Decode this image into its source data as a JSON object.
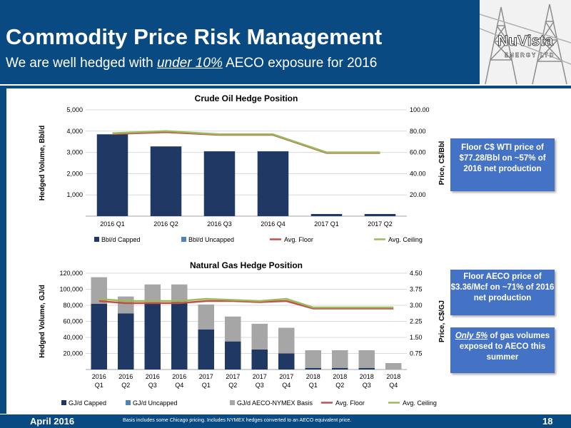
{
  "header": {
    "title": "Commodity Price Risk Management",
    "subtitle_pre": "We are well hedged with ",
    "subtitle_em": "under 10%",
    "subtitle_post": " AECO exposure for 2016",
    "logo_text": "NuVista",
    "logo_sub": "ENERGY LTD"
  },
  "callouts": {
    "oil": "Floor C$ WTI price of $77.28/Bbl on ~57% of 2016 net production",
    "gas": "Floor AECO price of $3.36/Mcf on ~71% of 2016 net production",
    "aeco_highlight": "Only 5%",
    "aeco_rest": " of gas volumes exposed to AECO this summer"
  },
  "footer": {
    "date": "April 2016",
    "note": "Basis includes some Chicago pricing.   Includes NYMEX hedges converted to an AECO equivalent price.",
    "page": "18"
  },
  "colors": {
    "brand": "#0a4a82",
    "capped": "#1f3864",
    "uncapped": "#4f81bd",
    "aeco_nymex": "#a6a6a6",
    "floor": "#c0504d",
    "ceiling": "#9bbb59",
    "callout": "#4472c4"
  },
  "chart_data": [
    {
      "type": "bar",
      "title": "Crude Oil Hedge Position",
      "ylabel": "Hedged Volume, Bbl/d",
      "y2label": "Price, C$/Bbl",
      "categories": [
        "2016 Q1",
        "2016 Q2",
        "2016 Q3",
        "2016 Q4",
        "2017 Q1",
        "2017 Q2"
      ],
      "ylim": [
        0,
        5000
      ],
      "yticks": [
        "",
        "1,000",
        "2,000",
        "3,000",
        "4,000",
        "5,000"
      ],
      "y2lim": [
        0,
        100
      ],
      "y2ticks": [
        "",
        "20.00",
        "40.00",
        "60.00",
        "80.00",
        "100.00"
      ],
      "stacked": true,
      "series": [
        {
          "name": "Bbl/d Capped",
          "values": [
            3850,
            3280,
            3050,
            3050,
            100,
            100
          ]
        },
        {
          "name": "Bbl/d Uncapped",
          "values": [
            0,
            0,
            0,
            0,
            0,
            0
          ]
        }
      ],
      "lines": [
        {
          "name": "Avg. Floor",
          "axis": "y2",
          "values": [
            77.3,
            79.0,
            76.5,
            76.5,
            59.5,
            59.5
          ]
        },
        {
          "name": "Avg. Ceiling",
          "axis": "y2",
          "values": [
            78.0,
            80.0,
            77.0,
            77.0,
            60.0,
            60.0
          ]
        }
      ],
      "legend_position": "bottom"
    },
    {
      "type": "bar",
      "title": "Natural Gas Hedge Position",
      "ylabel": "Hedged Volume, GJ/d",
      "y2label": "Price, C$/GJ",
      "categories": [
        "2016 Q1",
        "2016 Q2",
        "2016 Q3",
        "2016 Q4",
        "2017 Q1",
        "2017 Q2",
        "2017 Q3",
        "2017 Q4",
        "2018 Q1",
        "2018 Q2",
        "2018 Q3",
        "2018 Q4"
      ],
      "ylim": [
        0,
        120000
      ],
      "yticks": [
        "",
        "20,000",
        "40,000",
        "60,000",
        "80,000",
        "100,000",
        "120,000"
      ],
      "y2lim": [
        0,
        4.5
      ],
      "y2ticks": [
        "",
        "0.75",
        "1.50",
        "2.25",
        "3.00",
        "3.75",
        "4.50"
      ],
      "stacked": true,
      "series": [
        {
          "name": "GJ/d Capped",
          "values": [
            82000,
            70000,
            82000,
            84000,
            50000,
            35000,
            25000,
            20000,
            2000,
            2000,
            2000,
            0
          ]
        },
        {
          "name": "GJ/d Uncapped",
          "values": [
            0,
            0,
            0,
            0,
            0,
            0,
            0,
            0,
            0,
            0,
            0,
            0
          ]
        },
        {
          "name": "GJ/d AECO-NYMEX Basis",
          "values": [
            33000,
            21000,
            24000,
            22000,
            31000,
            31000,
            32000,
            32000,
            22000,
            22000,
            22000,
            8000
          ]
        }
      ],
      "lines": [
        {
          "name": "Avg. Floor",
          "axis": "y2",
          "values": [
            3.2,
            3.1,
            3.1,
            3.1,
            3.2,
            3.2,
            3.15,
            3.2,
            2.85,
            2.85,
            2.85,
            2.85
          ]
        },
        {
          "name": "Avg. Ceiling",
          "axis": "y2",
          "values": [
            3.3,
            3.2,
            3.2,
            3.2,
            3.3,
            3.25,
            3.2,
            3.3,
            2.9,
            2.9,
            2.9,
            2.9
          ]
        }
      ],
      "legend_position": "bottom"
    }
  ]
}
